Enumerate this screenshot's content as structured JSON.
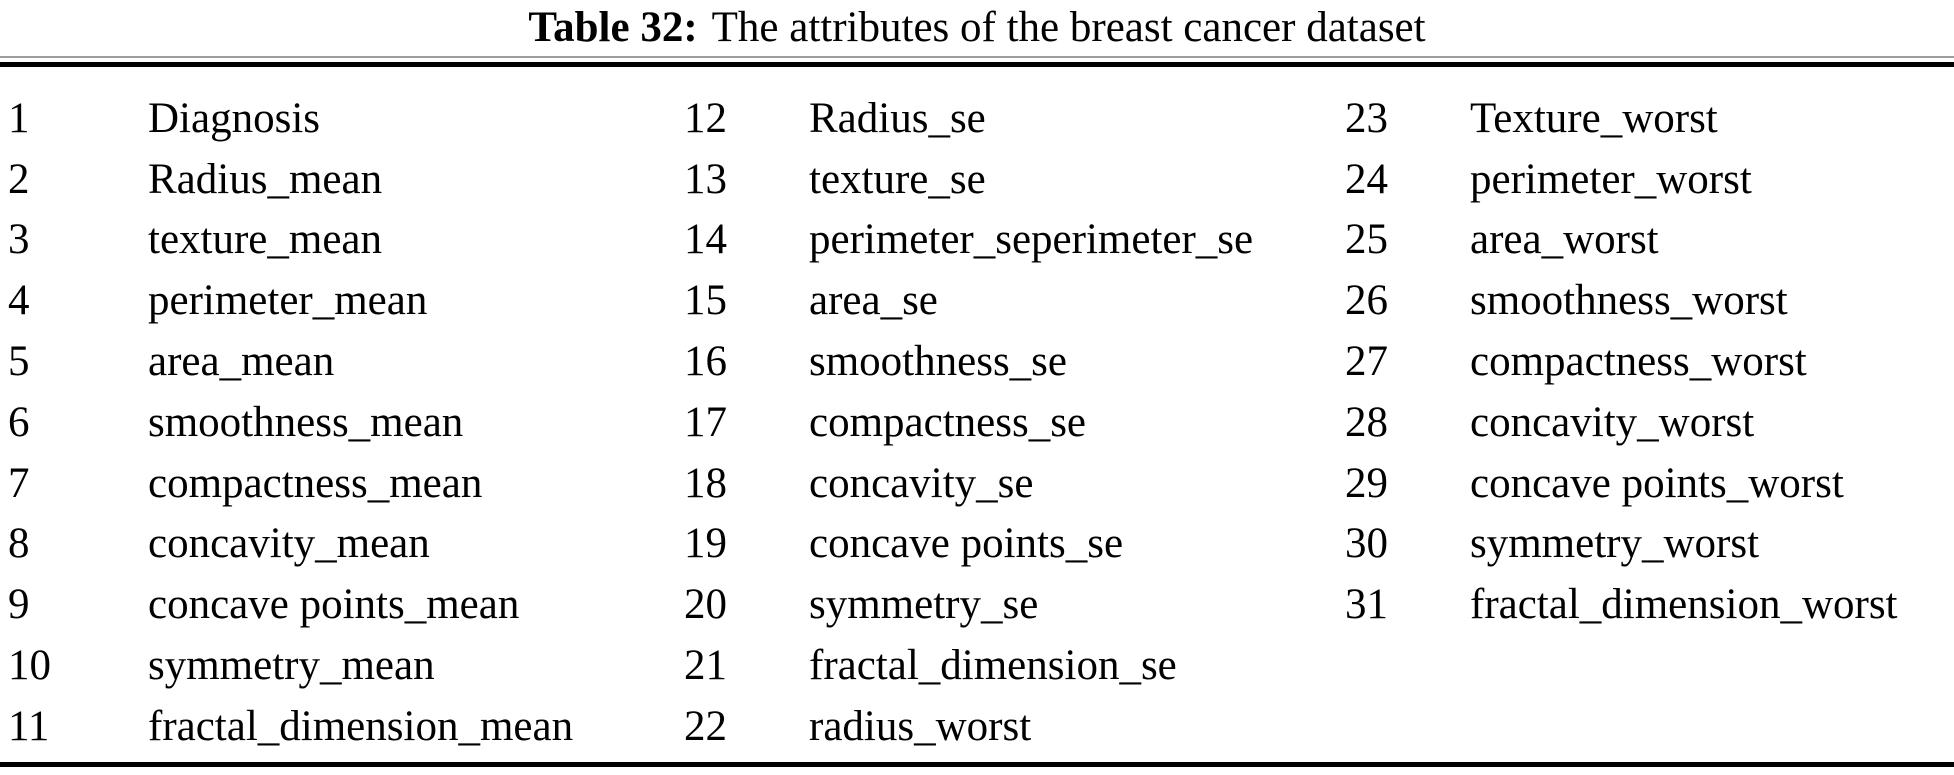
{
  "table": {
    "caption": {
      "label": "Table 32:",
      "title": "The attributes of the breast cancer dataset"
    },
    "columns": [
      {
        "entries": [
          {
            "num": "1",
            "name": "Diagnosis"
          },
          {
            "num": "2",
            "name": "Radius_mean"
          },
          {
            "num": "3",
            "name": "texture_mean"
          },
          {
            "num": "4",
            "name": "perimeter_mean"
          },
          {
            "num": "5",
            "name": "area_mean"
          },
          {
            "num": "6",
            "name": "smoothness_mean"
          },
          {
            "num": "7",
            "name": "compactness_mean"
          },
          {
            "num": "8",
            "name": "concavity_mean"
          },
          {
            "num": "9",
            "name": "concave points_mean"
          },
          {
            "num": "10",
            "name": "symmetry_mean"
          },
          {
            "num": "11",
            "name": "fractal_dimension_mean"
          }
        ]
      },
      {
        "entries": [
          {
            "num": "12",
            "name": "Radius_se"
          },
          {
            "num": "13",
            "name": "texture_se"
          },
          {
            "num": "14",
            "name": "perimeter_seperimeter_se"
          },
          {
            "num": "15",
            "name": "area_se"
          },
          {
            "num": "16",
            "name": "smoothness_se"
          },
          {
            "num": "17",
            "name": "compactness_se"
          },
          {
            "num": "18",
            "name": "concavity_se"
          },
          {
            "num": "19",
            "name": "concave points_se"
          },
          {
            "num": "20",
            "name": "symmetry_se"
          },
          {
            "num": "21",
            "name": "fractal_dimension_se"
          },
          {
            "num": "22",
            "name": "radius_worst"
          }
        ]
      },
      {
        "entries": [
          {
            "num": "23",
            "name": "Texture_worst"
          },
          {
            "num": "24",
            "name": "perimeter_worst"
          },
          {
            "num": "25",
            "name": "area_worst"
          },
          {
            "num": "26",
            "name": "smoothness_worst"
          },
          {
            "num": "27",
            "name": "compactness_worst"
          },
          {
            "num": "28",
            "name": "concavity_worst"
          },
          {
            "num": "29",
            "name": "concave points_worst"
          },
          {
            "num": "30",
            "name": "symmetry_worst"
          },
          {
            "num": "31",
            "name": "fractal_dimension_worst"
          }
        ]
      }
    ]
  },
  "colors": {
    "text": "#000000",
    "background": "#ffffff",
    "rule": "#000000",
    "rule_shadow": "#9c9c9c"
  }
}
